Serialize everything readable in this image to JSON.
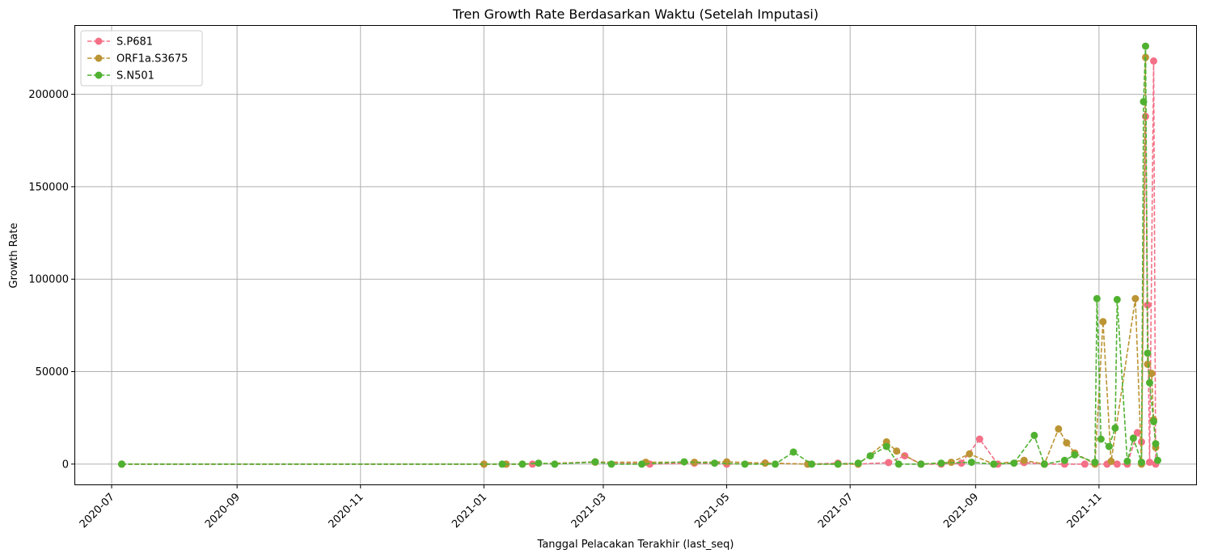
{
  "chart_data": {
    "type": "line",
    "title": "Tren Growth Rate Berdasarkan Waktu (Setelah Imputasi)",
    "xlabel": "Tanggal Pelacakan Terakhir (last_seq)",
    "ylabel": "Growth Rate",
    "xlim": [
      "2020-06-13",
      "2021-12-19"
    ],
    "ylim": [
      -11000,
      237000
    ],
    "x_ticks": [
      "2020-07",
      "2020-09",
      "2020-11",
      "2021-01",
      "2021-03",
      "2021-05",
      "2021-07",
      "2021-09",
      "2021-11"
    ],
    "y_ticks": [
      0,
      50000,
      100000,
      150000,
      200000
    ],
    "grid": true,
    "legend_position": "top-left",
    "series": [
      {
        "name": "S.P681",
        "color": "#f37086",
        "line_style": "dashed",
        "points": [
          [
            "2020-07-06",
            0
          ],
          [
            "2021-01-01",
            0
          ],
          [
            "2021-01-12",
            0
          ],
          [
            "2021-01-25",
            0
          ],
          [
            "2021-02-25",
            1200
          ],
          [
            "2021-03-24",
            0
          ],
          [
            "2021-04-15",
            500
          ],
          [
            "2021-05-01",
            0
          ],
          [
            "2021-05-20",
            600
          ],
          [
            "2021-06-10",
            0
          ],
          [
            "2021-06-25",
            500
          ],
          [
            "2021-07-05",
            0
          ],
          [
            "2021-07-20",
            800
          ],
          [
            "2021-07-28",
            4500
          ],
          [
            "2021-08-05",
            0
          ],
          [
            "2021-08-15",
            0
          ],
          [
            "2021-08-25",
            500
          ],
          [
            "2021-09-03",
            13500
          ],
          [
            "2021-09-12",
            0
          ],
          [
            "2021-09-25",
            800
          ],
          [
            "2021-10-05",
            0
          ],
          [
            "2021-10-15",
            0
          ],
          [
            "2021-10-25",
            0
          ],
          [
            "2021-11-05",
            0
          ],
          [
            "2021-11-10",
            0
          ],
          [
            "2021-11-15",
            0
          ],
          [
            "2021-11-20",
            17000
          ],
          [
            "2021-11-22",
            12000
          ],
          [
            "2021-11-24",
            188000
          ],
          [
            "2021-11-25",
            86000
          ],
          [
            "2021-11-26",
            1000
          ],
          [
            "2021-11-28",
            218000
          ],
          [
            "2021-11-29",
            0
          ]
        ]
      },
      {
        "name": "ORF1a.S3675",
        "color": "#bb9434",
        "line_style": "dashed",
        "points": [
          [
            "2020-07-06",
            0
          ],
          [
            "2021-01-01",
            0
          ],
          [
            "2021-01-12",
            0
          ],
          [
            "2021-01-20",
            0
          ],
          [
            "2021-02-25",
            1000
          ],
          [
            "2021-03-22",
            1000
          ],
          [
            "2021-04-15",
            1000
          ],
          [
            "2021-05-01",
            1200
          ],
          [
            "2021-05-20",
            500
          ],
          [
            "2021-06-10",
            0
          ],
          [
            "2021-06-25",
            0
          ],
          [
            "2021-07-05",
            0
          ],
          [
            "2021-07-19",
            12000
          ],
          [
            "2021-07-24",
            7000
          ],
          [
            "2021-08-05",
            0
          ],
          [
            "2021-08-20",
            1000
          ],
          [
            "2021-08-29",
            5500
          ],
          [
            "2021-09-10",
            0
          ],
          [
            "2021-09-25",
            2000
          ],
          [
            "2021-10-05",
            0
          ],
          [
            "2021-10-12",
            19000
          ],
          [
            "2021-10-16",
            11500
          ],
          [
            "2021-10-20",
            6000
          ],
          [
            "2021-10-30",
            0
          ],
          [
            "2021-11-03",
            77000
          ],
          [
            "2021-11-07",
            1500
          ],
          [
            "2021-11-19",
            89500
          ],
          [
            "2021-11-22",
            0
          ],
          [
            "2021-11-24",
            220000
          ],
          [
            "2021-11-25",
            54000
          ],
          [
            "2021-11-27",
            49000
          ],
          [
            "2021-11-28",
            24000
          ],
          [
            "2021-11-29",
            9000
          ]
        ]
      },
      {
        "name": "S.N501",
        "color": "#50b131",
        "line_style": "dashed",
        "points": [
          [
            "2020-07-06",
            0
          ],
          [
            "2021-01-10",
            0
          ],
          [
            "2021-01-20",
            0
          ],
          [
            "2021-01-28",
            500
          ],
          [
            "2021-02-05",
            0
          ],
          [
            "2021-02-25",
            1200
          ],
          [
            "2021-03-05",
            0
          ],
          [
            "2021-03-20",
            0
          ],
          [
            "2021-04-10",
            1200
          ],
          [
            "2021-04-25",
            500
          ],
          [
            "2021-05-10",
            0
          ],
          [
            "2021-05-25",
            0
          ],
          [
            "2021-06-03",
            6500
          ],
          [
            "2021-06-12",
            0
          ],
          [
            "2021-06-25",
            0
          ],
          [
            "2021-07-05",
            500
          ],
          [
            "2021-07-11",
            4500
          ],
          [
            "2021-07-19",
            9500
          ],
          [
            "2021-07-25",
            0
          ],
          [
            "2021-08-05",
            0
          ],
          [
            "2021-08-15",
            500
          ],
          [
            "2021-08-30",
            1000
          ],
          [
            "2021-09-10",
            0
          ],
          [
            "2021-09-20",
            500
          ],
          [
            "2021-09-30",
            15500
          ],
          [
            "2021-10-05",
            0
          ],
          [
            "2021-10-15",
            2000
          ],
          [
            "2021-10-20",
            5000
          ],
          [
            "2021-10-30",
            1000
          ],
          [
            "2021-10-31",
            89500
          ],
          [
            "2021-11-02",
            13500
          ],
          [
            "2021-11-06",
            9500
          ],
          [
            "2021-11-09",
            19500
          ],
          [
            "2021-11-10",
            89000
          ],
          [
            "2021-11-15",
            1500
          ],
          [
            "2021-11-18",
            14000
          ],
          [
            "2021-11-22",
            1000
          ],
          [
            "2021-11-23",
            196000
          ],
          [
            "2021-11-24",
            226000
          ],
          [
            "2021-11-25",
            60000
          ],
          [
            "2021-11-26",
            44000
          ],
          [
            "2021-11-28",
            23000
          ],
          [
            "2021-11-29",
            11000
          ],
          [
            "2021-11-30",
            2000
          ]
        ]
      }
    ]
  }
}
